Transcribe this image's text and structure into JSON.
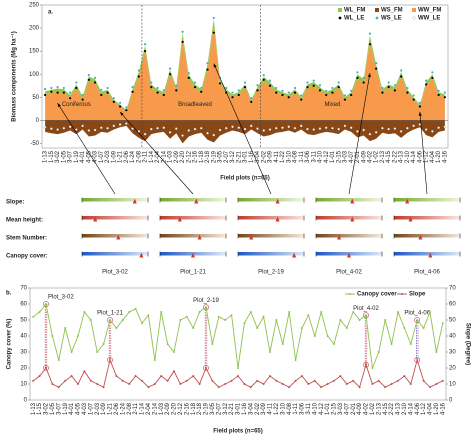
{
  "chart_data": [
    {
      "type": "area",
      "title": "a.",
      "ylabel": "Biomass components (Mg ha⁻¹)",
      "xlabel": "Field plots (n=65)",
      "categories": [
        "1-13",
        "1-15",
        "3-02",
        "1-05",
        "3-07",
        "1-19",
        "4-01",
        "4-05",
        "4-03",
        "1-07",
        "2-03",
        "1-09",
        "1-21",
        "2-06",
        "1-24",
        "2-08",
        "2-11",
        "1-14",
        "2-04",
        "2-14",
        "1-03",
        "2-09",
        "2-20",
        "2-12",
        "2-16",
        "1-18",
        "2-18",
        "2-19",
        "3-05",
        "2-07",
        "3-12",
        "2-21",
        "3-01",
        "1-16",
        "3-04",
        "2-02",
        "3-09",
        "4-11",
        "1-22",
        "3-10",
        "4-08",
        "1-11",
        "3-06",
        "3-11",
        "4-10",
        "4-12",
        "1-01",
        "2-15",
        "3-03",
        "4-07",
        "2-01",
        "4-09",
        "4-02",
        "1-02",
        "2-13",
        "4-15",
        "2-22",
        "4-13",
        "2-10",
        "4-14",
        "4-06",
        "1-12",
        "4-04",
        "1-20",
        "4-16"
      ],
      "ylim": [
        -60,
        250
      ],
      "yticks": [
        -50,
        0,
        50,
        100,
        150,
        200,
        250
      ],
      "series": [
        {
          "name": "WL_FM",
          "color": "#92c84a",
          "style": "area",
          "values": [
            8,
            6,
            7,
            9,
            5,
            8,
            6,
            10,
            9,
            7,
            6,
            5,
            4,
            3,
            7,
            10,
            12,
            8,
            7,
            6,
            10,
            7,
            14,
            9,
            8,
            7,
            11,
            15,
            8,
            7,
            6,
            6,
            8,
            5,
            7,
            9,
            8,
            7,
            6,
            6,
            7,
            5,
            8,
            8,
            7,
            6,
            7,
            8,
            5,
            6,
            10,
            9,
            14,
            11,
            7,
            8,
            7,
            10,
            7,
            5,
            4,
            8,
            10,
            6,
            6
          ]
        },
        {
          "name": "WS_FM",
          "color": "#8a4716",
          "style": "area",
          "values": [
            -25,
            -28,
            -30,
            -27,
            -22,
            -30,
            -20,
            -35,
            -33,
            -25,
            -27,
            -20,
            -15,
            -12,
            -28,
            -38,
            -45,
            -30,
            -27,
            -25,
            -40,
            -28,
            -50,
            -35,
            -30,
            -27,
            -42,
            -48,
            -33,
            -27,
            -22,
            -25,
            -30,
            -20,
            -28,
            -35,
            -32,
            -27,
            -25,
            -22,
            -27,
            -20,
            -30,
            -32,
            -28,
            -25,
            -27,
            -30,
            -20,
            -25,
            -37,
            -33,
            -45,
            -40,
            -27,
            -30,
            -28,
            -38,
            -27,
            -20,
            -15,
            -32,
            -37,
            -25,
            -22
          ]
        },
        {
          "name": "WW_FM",
          "color": "#f79a4c",
          "style": "area",
          "values": [
            55,
            60,
            62,
            58,
            50,
            70,
            45,
            85,
            80,
            55,
            60,
            40,
            30,
            20,
            60,
            95,
            150,
            70,
            60,
            55,
            100,
            65,
            175,
            90,
            70,
            60,
            110,
            205,
            80,
            60,
            50,
            55,
            70,
            40,
            65,
            85,
            75,
            60,
            55,
            50,
            60,
            45,
            70,
            75,
            65,
            55,
            60,
            70,
            45,
            55,
            90,
            80,
            170,
            110,
            60,
            70,
            65,
            95,
            60,
            45,
            30,
            75,
            90,
            55,
            50
          ]
        },
        {
          "name": "WL_LE",
          "color": "#000000",
          "style": "dot",
          "values": [
            55,
            62,
            60,
            60,
            48,
            70,
            45,
            88,
            82,
            55,
            60,
            40,
            30,
            22,
            62,
            95,
            150,
            72,
            60,
            55,
            100,
            65,
            170,
            92,
            72,
            62,
            110,
            190,
            80,
            60,
            50,
            55,
            72,
            40,
            65,
            88,
            75,
            60,
            55,
            50,
            60,
            45,
            72,
            75,
            65,
            55,
            60,
            72,
            45,
            55,
            92,
            82,
            165,
            112,
            60,
            72,
            65,
            95,
            60,
            45,
            30,
            78,
            92,
            55,
            50
          ]
        },
        {
          "name": "WS_LE",
          "color": "#4bacc6",
          "style": "dot",
          "values": [
            68,
            70,
            72,
            70,
            60,
            82,
            55,
            98,
            92,
            66,
            70,
            48,
            38,
            28,
            72,
            108,
            165,
            82,
            70,
            65,
            112,
            75,
            192,
            102,
            82,
            70,
            124,
            222,
            92,
            70,
            60,
            65,
            82,
            48,
            76,
            98,
            86,
            70,
            64,
            60,
            70,
            54,
            82,
            86,
            76,
            64,
            70,
            82,
            54,
            64,
            104,
            92,
            188,
            124,
            70,
            82,
            76,
            108,
            70,
            54,
            38,
            86,
            104,
            64,
            60
          ]
        },
        {
          "name": "WW_LE",
          "color": "#ffffff",
          "style": "dot",
          "values": [
            -15,
            -18,
            -20,
            -17,
            -14,
            -20,
            -12,
            -22,
            -21,
            -16,
            -17,
            -12,
            -9,
            -7,
            -18,
            -24,
            -30,
            -19,
            -17,
            -16,
            -26,
            -18,
            -33,
            -22,
            -19,
            -17,
            -28,
            -32,
            -21,
            -17,
            -14,
            -16,
            -19,
            -12,
            -18,
            -22,
            -20,
            -17,
            -16,
            -14,
            -17,
            -12,
            -19,
            -20,
            -18,
            -16,
            -17,
            -19,
            -12,
            -16,
            -24,
            -21,
            -30,
            -26,
            -17,
            -19,
            -18,
            -24,
            -17,
            -12,
            -9,
            -20,
            -24,
            -16,
            -14
          ]
        }
      ],
      "annotations": [
        {
          "text": "Coniferous",
          "x": "1-19"
        },
        {
          "text": "Broadleaved",
          "x": "2-16"
        },
        {
          "text": "Mixed",
          "x": "1-01"
        }
      ]
    },
    {
      "type": "gauge",
      "xlim": [
        0,
        1
      ],
      "plots": [
        "Plot_3-02",
        "Plot_1-21",
        "Plot_2-19",
        "Plot_4-02",
        "Plot_4-06"
      ],
      "rows": [
        {
          "name": "Slope:",
          "colors": [
            "#76a82a",
            "#eef6de"
          ],
          "values": [
            0.8,
            0.55,
            0.6,
            0.55,
            0.2
          ]
        },
        {
          "name": "Mean height:",
          "colors": [
            "#c0392b",
            "#fbe4e1"
          ],
          "values": [
            0.2,
            0.3,
            0.6,
            0.55,
            0.25
          ]
        },
        {
          "name": "Stem Number:",
          "colors": [
            "#744315",
            "#f4e8da"
          ],
          "values": [
            0.55,
            0.6,
            0.2,
            0.35,
            0.4
          ]
        },
        {
          "name": "Canopy cover:",
          "colors": [
            "#1a56c4",
            "#dde9fb"
          ],
          "values": [
            0.9,
            0.5,
            0.85,
            0.5,
            0.55
          ]
        }
      ]
    },
    {
      "type": "line",
      "title": "b.",
      "ylabel": "Canopy cover (%)",
      "y2label": "Slope (Degree)",
      "xlabel": "Field plots (n=65)",
      "categories": [
        "1-13",
        "1-15",
        "3-02",
        "1-05",
        "3-07",
        "1-19",
        "4-01",
        "4-05",
        "4-03",
        "1-07",
        "2-03",
        "1-09",
        "1-21",
        "2-06",
        "1-24",
        "2-08",
        "2-11",
        "1-14",
        "2-04",
        "2-14",
        "1-03",
        "2-09",
        "2-20",
        "2-12",
        "2-16",
        "1-18",
        "2-18",
        "2-19",
        "3-05",
        "2-07",
        "3-12",
        "2-21",
        "3-01",
        "1-16",
        "3-04",
        "2-02",
        "3-09",
        "4-11",
        "1-22",
        "3-10",
        "4-08",
        "1-11",
        "3-06",
        "3-11",
        "4-10",
        "4-12",
        "1-01",
        "2-15",
        "3-03",
        "4-07",
        "2-01",
        "4-09",
        "4-02",
        "1-02",
        "2-13",
        "4-15",
        "2-22",
        "4-13",
        "2-10",
        "4-14",
        "4-06",
        "1-12",
        "4-04",
        "1-20",
        "4-16"
      ],
      "ylim": [
        0,
        70
      ],
      "yticks": [
        0,
        10,
        20,
        30,
        40,
        50,
        60,
        70
      ],
      "y2lim": [
        0,
        70
      ],
      "y2ticks": [
        0,
        10,
        20,
        30,
        40,
        50,
        60,
        70
      ],
      "legend": "top-right",
      "series": [
        {
          "name": "Canopy cover",
          "color": "#8fc04f",
          "values": [
            52,
            55,
            60,
            40,
            25,
            45,
            30,
            40,
            55,
            50,
            30,
            35,
            50,
            45,
            50,
            55,
            57,
            48,
            53,
            25,
            55,
            35,
            30,
            50,
            52,
            45,
            55,
            58,
            35,
            52,
            50,
            53,
            20,
            48,
            55,
            45,
            52,
            30,
            50,
            35,
            55,
            25,
            45,
            53,
            40,
            55,
            40,
            35,
            50,
            45,
            55,
            50,
            53,
            20,
            30,
            50,
            35,
            55,
            45,
            35,
            50,
            45,
            55,
            30,
            48
          ]
        },
        {
          "name": "Slope",
          "color": "#c0504d",
          "axis": "y2",
          "values": [
            12,
            15,
            20,
            10,
            8,
            12,
            15,
            10,
            18,
            12,
            10,
            8,
            25,
            15,
            12,
            10,
            15,
            12,
            8,
            10,
            15,
            12,
            18,
            10,
            12,
            15,
            10,
            20,
            12,
            8,
            10,
            12,
            15,
            10,
            8,
            12,
            10,
            15,
            12,
            10,
            8,
            12,
            15,
            10,
            12,
            8,
            10,
            12,
            15,
            10,
            12,
            8,
            22,
            10,
            12,
            8,
            10,
            12,
            15,
            10,
            25,
            12,
            8,
            10,
            12
          ]
        }
      ],
      "annotations": [
        {
          "text": "Plot_3-02",
          "x": "3-02"
        },
        {
          "text": "Plot_1-21",
          "x": "1-21"
        },
        {
          "text": "Plot_2-19",
          "x": "2-19"
        },
        {
          "text": "Plot_4-02",
          "x": "4-02"
        },
        {
          "text": "Plot_4-06",
          "x": "4-06"
        }
      ]
    }
  ]
}
